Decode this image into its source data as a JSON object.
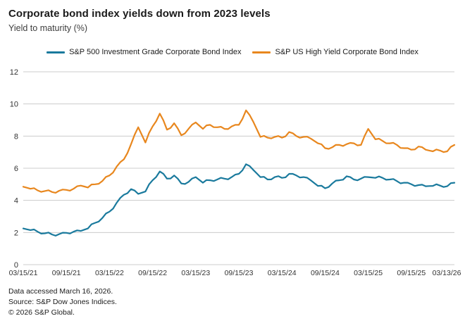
{
  "header": {
    "title": "Corporate bond index yields down from 2023 levels",
    "subtitle": "Yield to maturity (%)"
  },
  "legend": [
    {
      "label": "S&P 500 Investment Grade Corporate Bond Index",
      "color": "#1A7A9D"
    },
    {
      "label": "S&P US High Yield Corporate Bond Index",
      "color": "#E8871E"
    }
  ],
  "colors": {
    "grid": "#cccccc",
    "tick_label": "#333333",
    "investment_grade": "#1A7A9D",
    "high_yield": "#E8871E"
  },
  "chart_data": {
    "type": "line",
    "title": "Corporate bond index yields down from 2023 levels",
    "ylabel": "Yield to maturity (%)",
    "xlabel": "",
    "grid": true,
    "legend_position": "top",
    "ylim": [
      0,
      12
    ],
    "y_ticks": [
      0,
      2,
      4,
      6,
      8,
      10,
      12
    ],
    "x_tick_labels": [
      "03/15/21",
      "09/15/21",
      "03/15/22",
      "09/15/22",
      "03/15/23",
      "09/15/23",
      "03/15/24",
      "09/15/24",
      "03/15/25",
      "09/15/25",
      "03/13/26"
    ],
    "x_unit": "months since 03/15/21, one value per month",
    "series": [
      {
        "name": "S&P 500 Investment Grade Corporate Bond Index",
        "color": "#1A7A9D",
        "monthly_values": [
          2.25,
          2.15,
          2.05,
          1.95,
          1.88,
          1.9,
          1.98,
          2.05,
          2.1,
          2.25,
          2.6,
          2.9,
          3.3,
          3.85,
          4.35,
          4.7,
          4.4,
          4.55,
          5.25,
          5.8,
          5.35,
          5.55,
          5.05,
          5.15,
          5.45,
          5.1,
          5.25,
          5.3,
          5.35,
          5.45,
          5.65,
          6.25,
          5.9,
          5.45,
          5.3,
          5.45,
          5.4,
          5.65,
          5.55,
          5.45,
          5.25,
          4.9,
          4.75,
          5.05,
          5.25,
          5.5,
          5.3,
          5.35,
          5.45,
          5.4,
          5.4,
          5.3,
          5.2,
          5.1,
          5.0,
          4.95,
          4.88,
          4.9,
          4.92,
          4.88,
          5.1
        ]
      },
      {
        "name": "S&P US High Yield Corporate Bond Index",
        "color": "#E8871E",
        "monthly_values": [
          4.85,
          4.72,
          4.62,
          4.58,
          4.52,
          4.6,
          4.65,
          4.72,
          4.92,
          4.8,
          5.0,
          5.2,
          5.55,
          6.1,
          6.55,
          7.5,
          8.55,
          7.6,
          8.6,
          9.4,
          8.4,
          8.8,
          8.05,
          8.45,
          8.85,
          8.45,
          8.7,
          8.55,
          8.45,
          8.6,
          8.7,
          9.6,
          8.9,
          7.95,
          7.9,
          7.95,
          7.9,
          8.25,
          8.0,
          7.95,
          7.85,
          7.55,
          7.25,
          7.3,
          7.45,
          7.5,
          7.55,
          7.45,
          8.45,
          7.8,
          7.7,
          7.55,
          7.45,
          7.25,
          7.15,
          7.35,
          7.15,
          7.05,
          7.1,
          7.05,
          7.45
        ]
      }
    ],
    "texture_jitter": [
      0,
      0.09,
      -0.07,
      0.08,
      -0.09,
      0.05,
      -0.08,
      0.06
    ]
  },
  "footer": {
    "line1": "Data accessed March 16, 2026.",
    "line2": "Source: S&P Dow Jones Indices.",
    "line3": "© 2026 S&P Global."
  }
}
